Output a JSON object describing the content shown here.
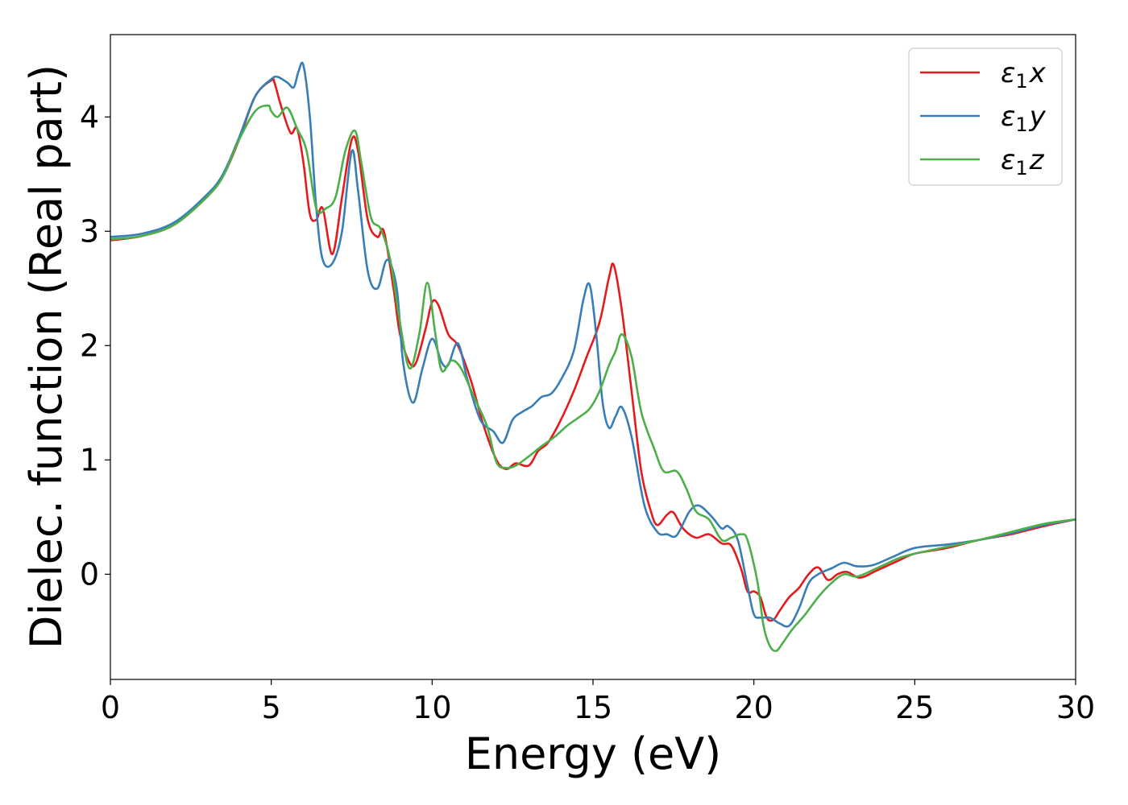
{
  "chart_data": {
    "type": "line",
    "xlabel": "Energy (eV)",
    "ylabel": "Dielec. function (Real part)",
    "xlim": [
      0,
      30
    ],
    "ylim": [
      -0.92,
      4.72
    ],
    "xticks": [
      0,
      5,
      10,
      15,
      20,
      25,
      30
    ],
    "yticks": [
      0,
      1,
      2,
      3,
      4
    ],
    "grid": false,
    "legend_position": "top-right",
    "series": [
      {
        "name": "ε₁x",
        "legend": {
          "base": "ε",
          "sub": "1",
          "suffix": "x"
        },
        "color": "#e41a1c",
        "x": [
          0,
          1,
          2,
          3,
          3.5,
          4,
          4.5,
          5.0,
          5.1,
          5.3,
          5.6,
          5.8,
          6.0,
          6.2,
          6.4,
          6.6,
          6.9,
          7.2,
          7.5,
          7.7,
          8.0,
          8.3,
          8.5,
          8.8,
          9.0,
          9.3,
          9.5,
          9.8,
          10.0,
          10.2,
          10.5,
          10.8,
          11.2,
          11.6,
          12.0,
          12.3,
          12.6,
          13.0,
          13.3,
          13.6,
          14.0,
          14.4,
          14.8,
          15.2,
          15.5,
          15.65,
          15.9,
          16.2,
          16.5,
          16.8,
          17.0,
          17.3,
          17.5,
          17.8,
          18.2,
          18.6,
          19.0,
          19.3,
          19.6,
          19.8,
          20.0,
          20.2,
          20.4,
          20.6,
          20.8,
          21.1,
          21.4,
          21.7,
          22.0,
          22.3,
          22.6,
          22.9,
          23.3,
          23.8,
          24.5,
          25.0,
          26.0,
          27.0,
          28.0,
          29.0,
          30.0
        ],
        "y": [
          2.92,
          2.96,
          3.06,
          3.3,
          3.48,
          3.8,
          4.18,
          4.32,
          4.3,
          4.1,
          3.86,
          3.9,
          3.6,
          3.15,
          3.1,
          3.2,
          2.8,
          3.3,
          3.8,
          3.7,
          3.1,
          2.95,
          3.0,
          2.5,
          2.1,
          1.85,
          1.85,
          2.15,
          2.38,
          2.35,
          2.1,
          2.0,
          1.7,
          1.3,
          1.0,
          0.92,
          0.97,
          0.95,
          1.08,
          1.15,
          1.35,
          1.6,
          1.9,
          2.2,
          2.6,
          2.7,
          2.3,
          1.6,
          0.9,
          0.55,
          0.43,
          0.52,
          0.54,
          0.4,
          0.32,
          0.35,
          0.27,
          0.25,
          0.05,
          -0.15,
          -0.15,
          -0.2,
          -0.38,
          -0.4,
          -0.32,
          -0.2,
          -0.12,
          0.0,
          0.06,
          -0.05,
          0.0,
          0.02,
          -0.03,
          0.03,
          0.12,
          0.18,
          0.23,
          0.3,
          0.35,
          0.42,
          0.48
        ]
      },
      {
        "name": "ε₁y",
        "legend": {
          "base": "ε",
          "sub": "1",
          "suffix": "y"
        },
        "color": "#377eb8",
        "x": [
          0,
          1,
          2,
          3,
          3.5,
          4,
          4.5,
          5.0,
          5.2,
          5.5,
          5.7,
          5.85,
          6.0,
          6.2,
          6.4,
          6.6,
          6.9,
          7.2,
          7.5,
          7.7,
          8.0,
          8.3,
          8.6,
          8.9,
          9.1,
          9.4,
          9.7,
          10.0,
          10.3,
          10.5,
          10.8,
          11.1,
          11.5,
          11.9,
          12.2,
          12.5,
          12.8,
          13.1,
          13.4,
          13.7,
          14.0,
          14.4,
          14.7,
          14.9,
          15.1,
          15.3,
          15.5,
          15.7,
          15.9,
          16.2,
          16.6,
          17.0,
          17.3,
          17.6,
          18.0,
          18.3,
          18.7,
          19.0,
          19.2,
          19.5,
          19.8,
          20.0,
          20.2,
          20.5,
          20.8,
          21.1,
          21.4,
          21.7,
          22.0,
          22.4,
          22.8,
          23.2,
          23.7,
          24.3,
          25.0,
          26.0,
          27.0,
          28.0,
          29.0,
          30.0
        ],
        "y": [
          2.95,
          2.98,
          3.08,
          3.32,
          3.5,
          3.82,
          4.18,
          4.33,
          4.35,
          4.3,
          4.26,
          4.4,
          4.45,
          4.0,
          3.2,
          2.75,
          2.72,
          3.0,
          3.7,
          3.35,
          2.65,
          2.5,
          2.75,
          2.5,
          1.85,
          1.5,
          1.8,
          2.06,
          1.85,
          1.83,
          2.02,
          1.7,
          1.35,
          1.25,
          1.15,
          1.35,
          1.42,
          1.47,
          1.55,
          1.58,
          1.7,
          1.95,
          2.4,
          2.53,
          2.1,
          1.5,
          1.28,
          1.38,
          1.46,
          1.2,
          0.6,
          0.37,
          0.35,
          0.34,
          0.55,
          0.6,
          0.5,
          0.4,
          0.42,
          0.3,
          -0.1,
          -0.35,
          -0.38,
          -0.38,
          -0.43,
          -0.45,
          -0.3,
          -0.08,
          0.0,
          0.05,
          0.1,
          0.07,
          0.08,
          0.15,
          0.23,
          0.26,
          0.3,
          0.36,
          0.43,
          0.48
        ]
      },
      {
        "name": "ε₁z",
        "legend": {
          "base": "ε",
          "sub": "1",
          "suffix": "z"
        },
        "color": "#4daf4a",
        "x": [
          0,
          1,
          2,
          3,
          3.5,
          4,
          4.5,
          4.9,
          5.0,
          5.2,
          5.5,
          5.8,
          6.1,
          6.4,
          6.7,
          7.0,
          7.3,
          7.6,
          7.8,
          8.1,
          8.4,
          8.7,
          9.0,
          9.3,
          9.6,
          9.85,
          10.1,
          10.3,
          10.6,
          10.9,
          11.3,
          11.7,
          12.0,
          12.3,
          12.6,
          13.0,
          13.4,
          13.8,
          14.2,
          14.6,
          14.9,
          15.2,
          15.5,
          15.7,
          15.9,
          16.2,
          16.5,
          16.9,
          17.2,
          17.6,
          17.9,
          18.2,
          18.6,
          19.0,
          19.3,
          19.6,
          19.8,
          20.1,
          20.3,
          20.5,
          20.7,
          20.9,
          21.2,
          21.6,
          22.0,
          22.4,
          22.8,
          23.2,
          23.8,
          24.5,
          25.0,
          26.0,
          27.0,
          28.0,
          29.0,
          30.0
        ],
        "y": [
          2.93,
          2.96,
          3.06,
          3.3,
          3.48,
          3.8,
          4.05,
          4.1,
          4.05,
          4.0,
          4.08,
          3.9,
          3.7,
          3.2,
          3.2,
          3.3,
          3.7,
          3.88,
          3.6,
          3.12,
          3.02,
          2.75,
          2.2,
          1.8,
          2.1,
          2.55,
          2.1,
          1.78,
          1.87,
          1.8,
          1.55,
          1.3,
          0.98,
          0.93,
          0.95,
          1.03,
          1.12,
          1.2,
          1.3,
          1.38,
          1.45,
          1.6,
          1.83,
          1.95,
          2.1,
          1.9,
          1.42,
          1.1,
          0.9,
          0.9,
          0.75,
          0.55,
          0.48,
          0.3,
          0.32,
          0.35,
          0.3,
          -0.05,
          -0.45,
          -0.63,
          -0.67,
          -0.6,
          -0.48,
          -0.35,
          -0.2,
          -0.08,
          0.0,
          -0.02,
          0.05,
          0.14,
          0.18,
          0.24,
          0.3,
          0.37,
          0.44,
          0.48
        ]
      }
    ]
  }
}
